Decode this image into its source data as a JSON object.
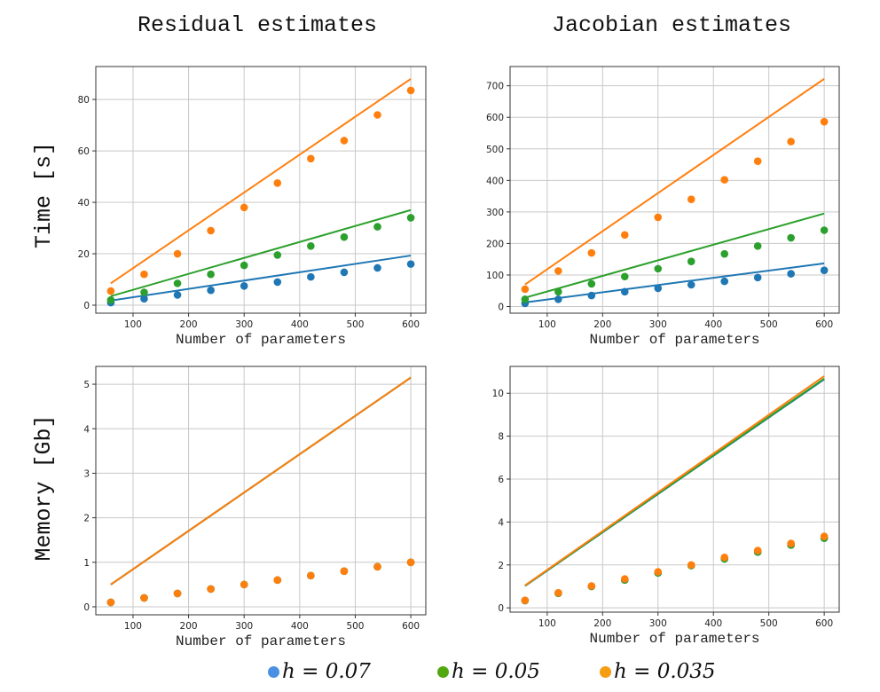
{
  "column_titles": [
    "Residual estimates",
    "Jacobian estimates"
  ],
  "row_labels": [
    "Time [s]",
    "Memory [Gb]"
  ],
  "legend": [
    {
      "label": "h = 0.07",
      "color": "#4a90e2"
    },
    {
      "label": "h = 0.05",
      "color": "#52a80e"
    },
    {
      "label": "h = 0.035",
      "color": "#f59c12"
    }
  ],
  "series_colors": [
    "#1f77b4",
    "#2ca02c",
    "#ff7f0e"
  ],
  "chart_data": [
    {
      "type": "scatter",
      "title": "Residual estimates",
      "xlabel": "Number of parameters",
      "ylabel": "Time [s]",
      "grid": true,
      "xlim": [
        33,
        627
      ],
      "ylim": [
        -3.1,
        92.8
      ],
      "xticks": [
        100,
        200,
        300,
        400,
        500,
        600
      ],
      "yticks": [
        0,
        20,
        40,
        60,
        80
      ],
      "x": [
        60,
        120,
        180,
        240,
        300,
        360,
        420,
        480,
        540,
        600
      ],
      "series": [
        {
          "points": [
            1,
            2.5,
            4,
            5.8,
            7.5,
            9,
            11,
            12.8,
            14.5,
            16
          ],
          "line": [
            1.8,
            19.3
          ]
        },
        {
          "points": [
            2,
            5,
            8.5,
            12,
            15.5,
            19.5,
            23,
            26.5,
            30.5,
            34
          ],
          "line": [
            3.5,
            37
          ]
        },
        {
          "points": [
            5.5,
            12,
            20,
            29,
            38,
            47.5,
            57,
            64,
            74,
            83.5
          ],
          "line": [
            8.5,
            88
          ]
        }
      ]
    },
    {
      "type": "scatter",
      "title": "Jacobian estimates",
      "xlabel": "Number of parameters",
      "ylabel": "Time [s]",
      "grid": true,
      "xlim": [
        33,
        627
      ],
      "ylim": [
        -21,
        761
      ],
      "xticks": [
        100,
        200,
        300,
        400,
        500,
        600
      ],
      "yticks": [
        0,
        100,
        200,
        300,
        400,
        500,
        600,
        700
      ],
      "x": [
        60,
        120,
        180,
        240,
        300,
        360,
        420,
        480,
        540,
        600
      ],
      "series": [
        {
          "points": [
            10,
            23,
            35,
            47,
            58,
            69,
            80,
            92,
            104,
            115
          ],
          "line": [
            13,
            137
          ]
        },
        {
          "points": [
            23,
            47,
            72,
            95,
            120,
            143,
            167,
            192,
            218,
            242
          ],
          "line": [
            28,
            295
          ]
        },
        {
          "points": [
            55,
            113,
            170,
            227,
            283,
            340,
            402,
            461,
            523,
            586
          ],
          "line": [
            70,
            722
          ]
        }
      ]
    },
    {
      "type": "scatter",
      "title": "Residual estimates",
      "xlabel": "Number of parameters",
      "ylabel": "Memory [Gb]",
      "grid": true,
      "xlim": [
        33,
        627
      ],
      "ylim": [
        -0.18,
        5.4
      ],
      "xticks": [
        100,
        200,
        300,
        400,
        500,
        600
      ],
      "yticks": [
        0,
        1,
        2,
        3,
        4,
        5
      ],
      "x": [
        60,
        120,
        180,
        240,
        300,
        360,
        420,
        480,
        540,
        600
      ],
      "series": [
        {
          "points": [
            0.1,
            0.2,
            0.3,
            0.4,
            0.5,
            0.6,
            0.7,
            0.8,
            0.9,
            1.0
          ],
          "line": [
            0.5,
            5.15
          ]
        },
        {
          "points": [
            0.1,
            0.2,
            0.3,
            0.4,
            0.5,
            0.6,
            0.7,
            0.8,
            0.9,
            1.0
          ],
          "line": [
            0.5,
            5.15
          ]
        },
        {
          "points": [
            0.1,
            0.2,
            0.3,
            0.4,
            0.5,
            0.6,
            0.7,
            0.8,
            0.9,
            1.0
          ],
          "line": [
            0.5,
            5.15
          ]
        }
      ]
    },
    {
      "type": "scatter",
      "title": "Jacobian estimates",
      "xlabel": "Number of parameters",
      "ylabel": "Memory [Gb]",
      "grid": true,
      "xlim": [
        33,
        627
      ],
      "ylim": [
        -0.2,
        11.25
      ],
      "xticks": [
        100,
        200,
        300,
        400,
        500,
        600
      ],
      "yticks": [
        0,
        2,
        4,
        6,
        8,
        10
      ],
      "x": [
        60,
        120,
        180,
        240,
        300,
        360,
        420,
        480,
        540,
        600
      ],
      "series": [
        {
          "points": [
            0.34,
            0.68,
            1.0,
            1.3,
            1.63,
            1.97,
            2.28,
            2.6,
            2.93,
            3.25
          ],
          "line": [
            1.02,
            10.65
          ]
        },
        {
          "points": [
            0.34,
            0.68,
            1.0,
            1.3,
            1.63,
            1.97,
            2.28,
            2.6,
            2.93,
            3.25
          ],
          "line": [
            1.03,
            10.68
          ]
        },
        {
          "points": [
            0.35,
            0.7,
            1.02,
            1.35,
            1.68,
            2.0,
            2.35,
            2.67,
            3.0,
            3.33
          ],
          "line": [
            1.05,
            10.8
          ]
        }
      ]
    }
  ]
}
